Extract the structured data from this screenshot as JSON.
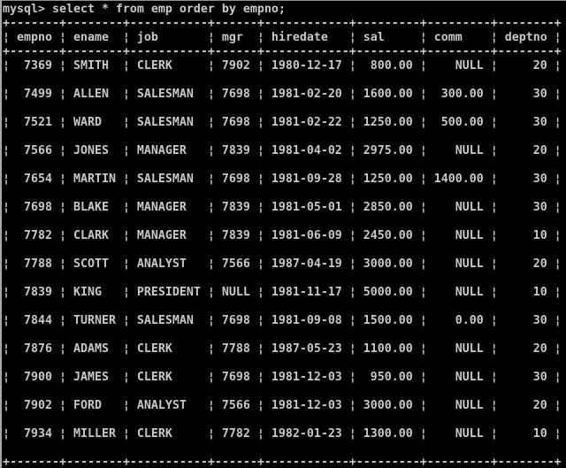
{
  "terminal": {
    "colors": {
      "background": "#000000",
      "text": "#c8c8c8",
      "window_edge": "#a8a8a8"
    },
    "prompt_line": "mysql> select * from emp order by empno;",
    "table": {
      "glyphs": {
        "vertical": "¦",
        "horizontal": "-",
        "corner": "+"
      },
      "blank_line_between_rows": true,
      "columns": [
        {
          "label": "empno",
          "width": 7,
          "align": "right"
        },
        {
          "label": "ename",
          "width": 8,
          "align": "left"
        },
        {
          "label": "job",
          "width": 11,
          "align": "left"
        },
        {
          "label": "mgr",
          "width": 6,
          "align": "right"
        },
        {
          "label": "hiredate",
          "width": 12,
          "align": "left"
        },
        {
          "label": "sal",
          "width": 9,
          "align": "right"
        },
        {
          "label": "comm",
          "width": 9,
          "align": "right"
        },
        {
          "label": "deptno",
          "width": 8,
          "align": "right"
        }
      ],
      "rows": [
        [
          "7369",
          "SMITH",
          "CLERK",
          "7902",
          "1980-12-17",
          "800.00",
          "NULL",
          "20"
        ],
        [
          "7499",
          "ALLEN",
          "SALESMAN",
          "7698",
          "1981-02-20",
          "1600.00",
          "300.00",
          "30"
        ],
        [
          "7521",
          "WARD",
          "SALESMAN",
          "7698",
          "1981-02-22",
          "1250.00",
          "500.00",
          "30"
        ],
        [
          "7566",
          "JONES",
          "MANAGER",
          "7839",
          "1981-04-02",
          "2975.00",
          "NULL",
          "20"
        ],
        [
          "7654",
          "MARTIN",
          "SALESMAN",
          "7698",
          "1981-09-28",
          "1250.00",
          "1400.00",
          "30"
        ],
        [
          "7698",
          "BLAKE",
          "MANAGER",
          "7839",
          "1981-05-01",
          "2850.00",
          "NULL",
          "30"
        ],
        [
          "7782",
          "CLARK",
          "MANAGER",
          "7839",
          "1981-06-09",
          "2450.00",
          "NULL",
          "10"
        ],
        [
          "7788",
          "SCOTT",
          "ANALYST",
          "7566",
          "1987-04-19",
          "3000.00",
          "NULL",
          "20"
        ],
        [
          "7839",
          "KING",
          "PRESIDENT",
          "NULL",
          "1981-11-17",
          "5000.00",
          "NULL",
          "10"
        ],
        [
          "7844",
          "TURNER",
          "SALESMAN",
          "7698",
          "1981-09-08",
          "1500.00",
          "0.00",
          "30"
        ],
        [
          "7876",
          "ADAMS",
          "CLERK",
          "7788",
          "1987-05-23",
          "1100.00",
          "NULL",
          "20"
        ],
        [
          "7900",
          "JAMES",
          "CLERK",
          "7698",
          "1981-12-03",
          "950.00",
          "NULL",
          "30"
        ],
        [
          "7902",
          "FORD",
          "ANALYST",
          "7566",
          "1981-12-03",
          "3000.00",
          "NULL",
          "20"
        ],
        [
          "7934",
          "MILLER",
          "CLERK",
          "7782",
          "1982-01-23",
          "1300.00",
          "NULL",
          "10"
        ]
      ]
    }
  }
}
